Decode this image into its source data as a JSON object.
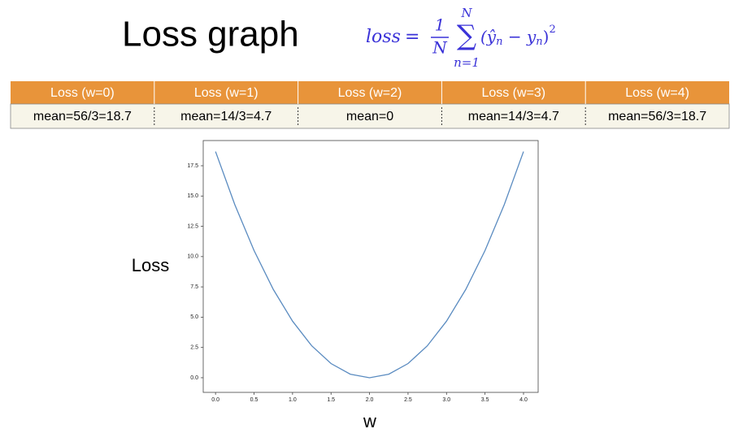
{
  "header": {
    "title": "Loss graph"
  },
  "formula": {
    "lhs": "loss",
    "equals": "=",
    "numerator": "1",
    "denominator": "N",
    "sum": "∑",
    "sum_upper": "N",
    "sum_lower": "n=1",
    "open": "(ŷ",
    "sub1": "n",
    "minus": " − y",
    "sub2": "n",
    "close": ")",
    "exponent": "2"
  },
  "table": {
    "headers": [
      "Loss (w=0)",
      "Loss (w=1)",
      "Loss (w=2)",
      "Loss (w=3)",
      "Loss (w=4)"
    ],
    "rows": [
      [
        "mean=56/3=18.7",
        "mean=14/3=4.7",
        "mean=0",
        "mean=14/3=4.7",
        "mean=56/3=18.7"
      ]
    ]
  },
  "chart_data": {
    "type": "line",
    "x_label": "w",
    "y_label": "Loss",
    "color": "#5a8bc0",
    "x": [
      0,
      0.25,
      0.5,
      0.75,
      1,
      1.25,
      1.5,
      1.75,
      2,
      2.25,
      2.5,
      2.75,
      3,
      3.25,
      3.5,
      3.75,
      4
    ],
    "values": [
      18.67,
      14.29,
      10.5,
      7.29,
      4.67,
      2.63,
      1.17,
      0.29,
      0,
      0.29,
      1.17,
      2.63,
      4.67,
      7.29,
      10.5,
      14.29,
      18.67
    ],
    "xlim": [
      -0.16,
      4.19
    ],
    "ylim": [
      -1.21,
      19.58
    ],
    "xticks": [
      {
        "value": 0,
        "label": "0.0"
      },
      0.5,
      {
        "value": 1,
        "label": "1.0"
      },
      1.5,
      {
        "value": 2,
        "label": "2.0"
      },
      2.5,
      {
        "value": 3,
        "label": "3.0"
      },
      3.5,
      {
        "value": 4,
        "label": "4.0"
      }
    ],
    "yticks": [
      {
        "value": 0,
        "label": "0.0"
      },
      2.5,
      {
        "value": 5,
        "label": "5.0"
      },
      7.5,
      {
        "value": 10,
        "label": "10.0"
      },
      12.5,
      {
        "value": 15,
        "label": "15.0"
      },
      17.5
    ]
  }
}
